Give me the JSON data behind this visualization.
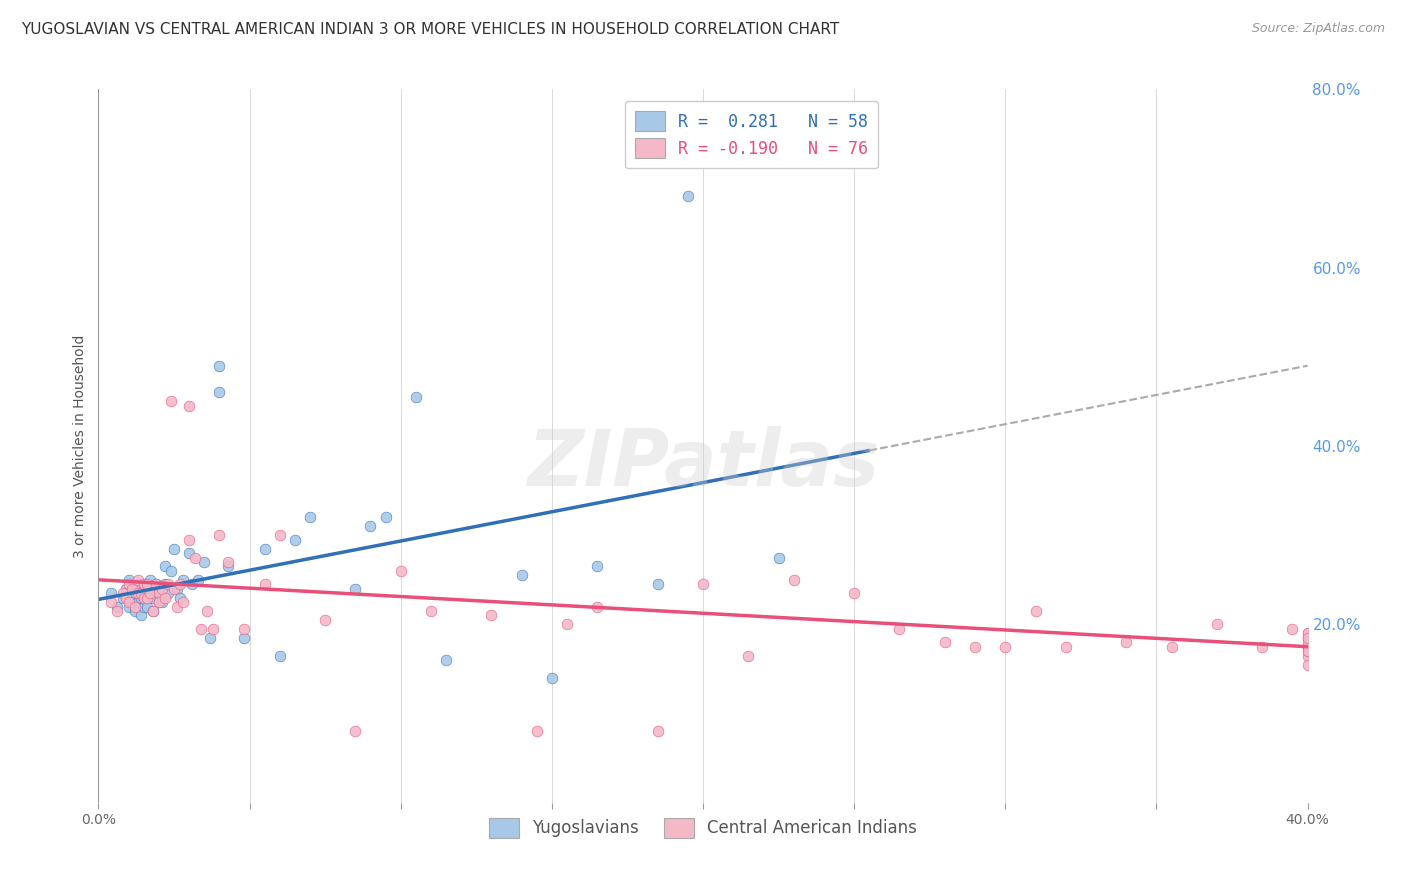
{
  "title": "YUGOSLAVIAN VS CENTRAL AMERICAN INDIAN 3 OR MORE VEHICLES IN HOUSEHOLD CORRELATION CHART",
  "source": "Source: ZipAtlas.com",
  "ylabel": "3 or more Vehicles in Household",
  "xlim": [
    0.0,
    0.4
  ],
  "ylim": [
    0.0,
    0.8
  ],
  "xticks": [
    0.0,
    0.05,
    0.1,
    0.15,
    0.2,
    0.25,
    0.3,
    0.35,
    0.4
  ],
  "yticks_right": [
    0.0,
    0.2,
    0.4,
    0.6,
    0.8
  ],
  "color_blue": "#a8c8e8",
  "color_pink": "#f4b8c8",
  "color_line_blue": "#3070b8",
  "color_line_pink": "#e8507a",
  "color_line_dash": "#aaaaaa",
  "grid_color": "#cccccc",
  "background_color": "#ffffff",
  "blue_scatter_x": [
    0.004,
    0.006,
    0.008,
    0.009,
    0.01,
    0.01,
    0.011,
    0.012,
    0.012,
    0.013,
    0.013,
    0.014,
    0.014,
    0.015,
    0.015,
    0.015,
    0.016,
    0.016,
    0.017,
    0.017,
    0.018,
    0.018,
    0.019,
    0.02,
    0.02,
    0.021,
    0.022,
    0.022,
    0.023,
    0.024,
    0.025,
    0.026,
    0.027,
    0.028,
    0.03,
    0.031,
    0.033,
    0.035,
    0.037,
    0.04,
    0.04,
    0.043,
    0.048,
    0.055,
    0.06,
    0.065,
    0.07,
    0.085,
    0.09,
    0.095,
    0.105,
    0.115,
    0.14,
    0.15,
    0.165,
    0.185,
    0.195,
    0.225
  ],
  "blue_scatter_y": [
    0.235,
    0.22,
    0.23,
    0.24,
    0.22,
    0.25,
    0.225,
    0.235,
    0.215,
    0.225,
    0.245,
    0.23,
    0.21,
    0.245,
    0.23,
    0.22,
    0.24,
    0.22,
    0.25,
    0.235,
    0.215,
    0.23,
    0.245,
    0.235,
    0.225,
    0.225,
    0.265,
    0.245,
    0.235,
    0.26,
    0.285,
    0.24,
    0.23,
    0.25,
    0.28,
    0.245,
    0.25,
    0.27,
    0.185,
    0.46,
    0.49,
    0.265,
    0.185,
    0.285,
    0.165,
    0.295,
    0.32,
    0.24,
    0.31,
    0.32,
    0.455,
    0.16,
    0.255,
    0.14,
    0.265,
    0.245,
    0.68,
    0.275
  ],
  "pink_scatter_x": [
    0.004,
    0.006,
    0.008,
    0.009,
    0.01,
    0.01,
    0.011,
    0.012,
    0.013,
    0.013,
    0.014,
    0.015,
    0.015,
    0.016,
    0.016,
    0.017,
    0.018,
    0.019,
    0.02,
    0.02,
    0.021,
    0.022,
    0.023,
    0.024,
    0.025,
    0.026,
    0.027,
    0.028,
    0.03,
    0.03,
    0.032,
    0.034,
    0.036,
    0.038,
    0.04,
    0.043,
    0.048,
    0.055,
    0.06,
    0.075,
    0.085,
    0.1,
    0.11,
    0.13,
    0.145,
    0.155,
    0.165,
    0.185,
    0.2,
    0.215,
    0.23,
    0.25,
    0.265,
    0.28,
    0.29,
    0.3,
    0.31,
    0.32,
    0.34,
    0.355,
    0.37,
    0.385,
    0.395,
    0.4,
    0.4,
    0.4,
    0.4,
    0.4,
    0.4,
    0.4,
    0.4,
    0.4,
    0.4,
    0.4,
    0.4,
    0.4
  ],
  "pink_scatter_y": [
    0.225,
    0.215,
    0.235,
    0.23,
    0.245,
    0.225,
    0.24,
    0.22,
    0.235,
    0.25,
    0.235,
    0.245,
    0.23,
    0.23,
    0.245,
    0.235,
    0.215,
    0.245,
    0.235,
    0.225,
    0.24,
    0.23,
    0.245,
    0.45,
    0.24,
    0.22,
    0.245,
    0.225,
    0.295,
    0.445,
    0.275,
    0.195,
    0.215,
    0.195,
    0.3,
    0.27,
    0.195,
    0.245,
    0.3,
    0.205,
    0.08,
    0.26,
    0.215,
    0.21,
    0.08,
    0.2,
    0.22,
    0.08,
    0.245,
    0.165,
    0.25,
    0.235,
    0.195,
    0.18,
    0.175,
    0.175,
    0.215,
    0.175,
    0.18,
    0.175,
    0.2,
    0.175,
    0.195,
    0.185,
    0.175,
    0.165,
    0.175,
    0.155,
    0.19,
    0.175,
    0.17,
    0.19,
    0.175,
    0.18,
    0.17,
    0.185
  ],
  "blue_trendline_x": [
    0.0,
    0.255
  ],
  "blue_trendline_y": [
    0.228,
    0.395
  ],
  "pink_trendline_x": [
    0.0,
    0.4
  ],
  "pink_trendline_y": [
    0.25,
    0.175
  ],
  "dash_trendline_x": [
    0.255,
    0.4
  ],
  "dash_trendline_y": [
    0.395,
    0.49
  ],
  "legend_label_blue": "Yugoslavians",
  "legend_label_pink": "Central American Indians",
  "title_fontsize": 11,
  "source_fontsize": 9,
  "axis_fontsize": 10,
  "legend_fontsize": 12,
  "scatter_size": 60,
  "watermark": "ZIPatlas"
}
